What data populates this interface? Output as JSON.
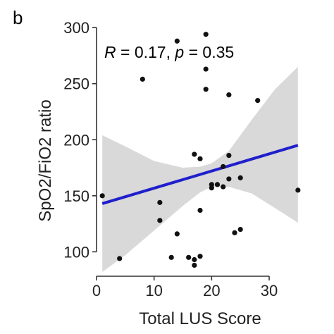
{
  "panel_label": "b",
  "colors": {
    "points": "#111111",
    "fit_line": "#1f1fcc",
    "ci_band": "#d9d9d9",
    "axis": "#333333"
  },
  "chart_data": {
    "type": "scatter",
    "xlabel": "Total LUS Score",
    "ylabel": "SpO2/FiO2 ratio",
    "xlim": [
      0,
      36
    ],
    "ylim": [
      82,
      302
    ],
    "x_ticks": [
      0,
      10,
      20,
      30
    ],
    "y_ticks": [
      100,
      150,
      200,
      250,
      300
    ],
    "grid": false,
    "annotation": {
      "r_symbol": "R",
      "r_text": " = 0.17, ",
      "p_symbol": "p",
      "p_text": " = 0.35"
    },
    "points": [
      {
        "x": 1,
        "y": 150
      },
      {
        "x": 4,
        "y": 94
      },
      {
        "x": 8,
        "y": 254
      },
      {
        "x": 11,
        "y": 144
      },
      {
        "x": 11,
        "y": 128
      },
      {
        "x": 13,
        "y": 95
      },
      {
        "x": 14,
        "y": 116
      },
      {
        "x": 14,
        "y": 288
      },
      {
        "x": 16,
        "y": 95
      },
      {
        "x": 17,
        "y": 187
      },
      {
        "x": 17,
        "y": 93
      },
      {
        "x": 17,
        "y": 88
      },
      {
        "x": 18,
        "y": 96
      },
      {
        "x": 18,
        "y": 137
      },
      {
        "x": 18,
        "y": 183
      },
      {
        "x": 19,
        "y": 294
      },
      {
        "x": 19,
        "y": 263
      },
      {
        "x": 19,
        "y": 245
      },
      {
        "x": 20,
        "y": 160
      },
      {
        "x": 20,
        "y": 157
      },
      {
        "x": 21,
        "y": 160
      },
      {
        "x": 22,
        "y": 158
      },
      {
        "x": 22,
        "y": 176
      },
      {
        "x": 23,
        "y": 186
      },
      {
        "x": 23,
        "y": 165
      },
      {
        "x": 23,
        "y": 240
      },
      {
        "x": 24,
        "y": 117
      },
      {
        "x": 25,
        "y": 120
      },
      {
        "x": 25,
        "y": 166
      },
      {
        "x": 28,
        "y": 235
      },
      {
        "x": 35,
        "y": 155
      }
    ],
    "fit": {
      "x": [
        1,
        35
      ],
      "y": [
        143,
        195
      ]
    },
    "ci_band": {
      "x": [
        1,
        5,
        10,
        15,
        18,
        20,
        23,
        27,
        31,
        35
      ],
      "lower": [
        82,
        97,
        119,
        141,
        153,
        158,
        158,
        152,
        139,
        126
      ],
      "upper": [
        204,
        194,
        181,
        175,
        176,
        179,
        190,
        218,
        245,
        265
      ]
    }
  }
}
